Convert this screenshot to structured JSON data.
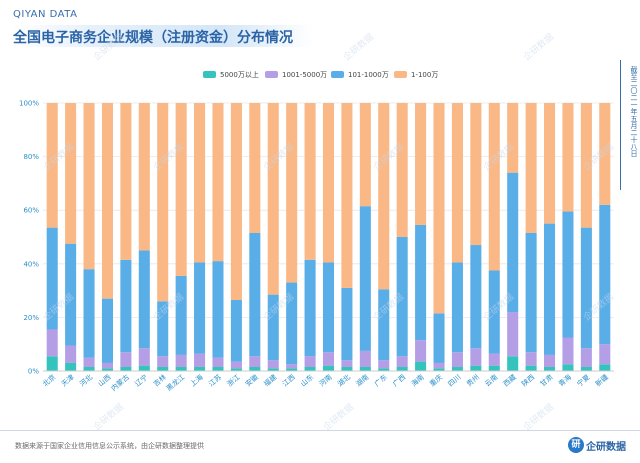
{
  "header": {
    "brand": "QIYAN DATA",
    "title": "全国电子商务企业规模（注册资金）分布情况"
  },
  "side_note": "截至二〇二一年五月二十八日",
  "footer": {
    "source": "数据来源于国家企业信用信息公示系统，由企研数据整理提供",
    "logo_text": "企研数据",
    "logo_badge": "研"
  },
  "watermark_text": "企研数据",
  "colors": {
    "s1": "#35c4bd",
    "s2": "#b49ee6",
    "s3": "#5aaee8",
    "s4": "#f9b885",
    "axis": "#2a8fc9",
    "grid": "#e8e8e8"
  },
  "chart_data": {
    "type": "bar",
    "stacked": true,
    "ylim": [
      0,
      100
    ],
    "yticks": [
      "0%",
      "20%",
      "40%",
      "60%",
      "80%",
      "100%"
    ],
    "categories": [
      "北京",
      "天津",
      "河北",
      "山西",
      "内蒙古",
      "辽宁",
      "吉林",
      "黑龙江",
      "上海",
      "江苏",
      "浙江",
      "安徽",
      "福建",
      "江西",
      "山东",
      "河南",
      "湖北",
      "湖南",
      "广东",
      "广西",
      "海南",
      "重庆",
      "四川",
      "贵州",
      "云南",
      "西藏",
      "陕西",
      "甘肃",
      "青海",
      "宁夏",
      "新疆"
    ],
    "legend_position": "top-center",
    "series": [
      {
        "name": "5000万以上",
        "color": "#35c4bd",
        "values": [
          5.5,
          3,
          1.5,
          1,
          1.5,
          2,
          1.5,
          1.5,
          1.5,
          1.5,
          1,
          1.5,
          1,
          1,
          1.5,
          2,
          1.5,
          1.5,
          1,
          1.5,
          3.5,
          1,
          1.5,
          2,
          2,
          5.5,
          2,
          1.5,
          2.5,
          1.5,
          2.5
        ]
      },
      {
        "name": "1001-5000万",
        "color": "#b49ee6",
        "values": [
          10,
          6.5,
          3.5,
          2,
          5.5,
          6.5,
          4,
          4.5,
          5,
          3.5,
          2.5,
          4,
          3,
          1.5,
          4,
          5,
          2.5,
          6,
          3,
          4,
          8,
          2,
          5.5,
          6.5,
          4.5,
          16.5,
          5,
          4.5,
          10,
          7,
          7.5
        ]
      },
      {
        "name": "101-1000万",
        "color": "#5aaee8",
        "values": [
          38,
          38,
          33,
          24,
          34.5,
          36.5,
          20.5,
          29.5,
          34,
          36,
          23,
          46,
          24.5,
          30.5,
          36,
          33.5,
          27,
          54,
          26.5,
          44.5,
          43,
          18.5,
          33.5,
          38.5,
          31,
          52,
          44.5,
          49,
          47,
          45,
          52
        ]
      },
      {
        "name": "1-100万",
        "color": "#f9b885",
        "values": [
          46.5,
          52.5,
          62,
          73,
          58.5,
          55,
          74,
          64.5,
          59.5,
          59,
          73.5,
          48.5,
          71.5,
          67,
          58.5,
          59.5,
          69,
          38.5,
          69.5,
          50,
          45.5,
          78.5,
          59.5,
          53,
          62.5,
          26,
          48.5,
          45,
          40.5,
          46.5,
          38
        ]
      }
    ]
  }
}
